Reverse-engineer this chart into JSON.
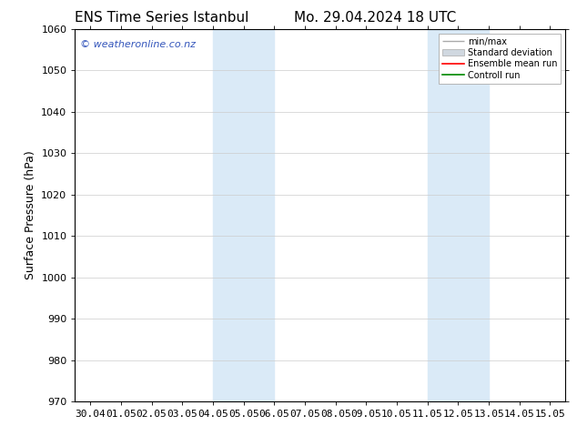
{
  "title_left": "ENS Time Series Istanbul",
  "title_right": "Mo. 29.04.2024 18 UTC",
  "ylabel": "Surface Pressure (hPa)",
  "ylim": [
    970,
    1060
  ],
  "yticks": [
    970,
    980,
    990,
    1000,
    1010,
    1020,
    1030,
    1040,
    1050,
    1060
  ],
  "xtick_labels": [
    "30.04",
    "01.05",
    "02.05",
    "03.05",
    "04.05",
    "05.05",
    "06.05",
    "07.05",
    "08.05",
    "09.05",
    "10.05",
    "11.05",
    "12.05",
    "13.05",
    "14.05",
    "15.05"
  ],
  "xtick_positions": [
    0,
    1,
    2,
    3,
    4,
    5,
    6,
    7,
    8,
    9,
    10,
    11,
    12,
    13,
    14,
    15
  ],
  "xlim_start": -0.5,
  "xlim_end": 15.5,
  "shaded_bands": [
    {
      "x_start": 4.0,
      "x_end": 6.0
    },
    {
      "x_start": 11.0,
      "x_end": 13.0
    }
  ],
  "shaded_color": "#daeaf7",
  "watermark_text": "© weatheronline.co.nz",
  "watermark_color": "#3355bb",
  "legend_labels": [
    "min/max",
    "Standard deviation",
    "Ensemble mean run",
    "Controll run"
  ],
  "legend_line_colors": [
    "#aaaaaa",
    "#cccccc",
    "#ff0000",
    "#008800"
  ],
  "background_color": "#ffffff",
  "tick_font_size": 8,
  "ylabel_font_size": 9,
  "title_font_size": 11,
  "watermark_font_size": 8,
  "legend_font_size": 7
}
